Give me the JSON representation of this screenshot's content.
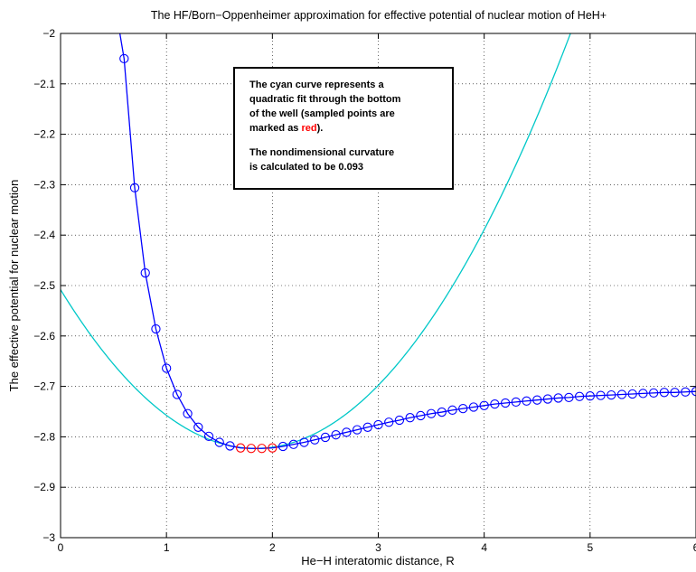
{
  "chart_data": {
    "type": "line",
    "title": "The HF/Born−Oppenheimer approximation for effective potential of nuclear motion of HeH+",
    "xlabel": "He−H interatomic distance, R",
    "ylabel": "The effective potential for nuclear motion",
    "xlim": [
      0,
      6
    ],
    "ylim": [
      -3,
      -2
    ],
    "x_ticks": [
      0,
      1,
      2,
      3,
      4,
      5,
      6
    ],
    "x_tick_labels": [
      "0",
      "1",
      "2",
      "3",
      "4",
      "5",
      "6"
    ],
    "y_ticks": [
      -3,
      -2.9,
      -2.8,
      -2.7,
      -2.6,
      -2.5,
      -2.4,
      -2.3,
      -2.2,
      -2.1,
      -2
    ],
    "y_tick_labels": [
      "−3",
      "−2.9",
      "−2.8",
      "−2.7",
      "−2.6",
      "−2.5",
      "−2.4",
      "−2.3",
      "−2.2",
      "−2.1",
      "−2"
    ],
    "grid": "dotted",
    "colors": {
      "potential": "#0000ff",
      "fit": "#00c8c8",
      "sampled": "#ff0000"
    },
    "annotation": {
      "para1_lines": [
        "The cyan curve represents a",
        "quadratic fit through the bottom",
        "of the well (sampled points are"
      ],
      "para1_last_prefix": "marked as ",
      "para1_last_red": "red",
      "para1_last_suffix": ").",
      "para2_lines": [
        "The nondimensional curvature",
        "is calculated to be 0.093"
      ]
    },
    "series": [
      {
        "style": "line-with-circles",
        "x": [
          0.6,
          0.7,
          0.8,
          0.9,
          1.0,
          1.1,
          1.2,
          1.3,
          1.4,
          1.5,
          1.6,
          1.7,
          1.8,
          1.9,
          2.0,
          2.1,
          2.2,
          2.3,
          2.4,
          2.5,
          2.6,
          2.7,
          2.8,
          2.9,
          3.0,
          3.1,
          3.2,
          3.3,
          3.4,
          3.5,
          3.6,
          3.7,
          3.8,
          3.9,
          4.0,
          4.1,
          4.2,
          4.3,
          4.4,
          4.5,
          4.6,
          4.7,
          4.8,
          4.9,
          5.0,
          5.1,
          5.2,
          5.3,
          5.4,
          5.5,
          5.6,
          5.7,
          5.8,
          5.9,
          6.0
        ],
        "y": [
          -2.05,
          -2.306,
          -2.475,
          -2.586,
          -2.664,
          -2.716,
          -2.754,
          -2.781,
          -2.799,
          -2.811,
          -2.818,
          -2.822,
          -2.823,
          -2.823,
          -2.822,
          -2.819,
          -2.815,
          -2.811,
          -2.806,
          -2.801,
          -2.796,
          -2.791,
          -2.786,
          -2.781,
          -2.776,
          -2.771,
          -2.767,
          -2.762,
          -2.758,
          -2.754,
          -2.751,
          -2.747,
          -2.744,
          -2.741,
          -2.738,
          -2.735,
          -2.733,
          -2.731,
          -2.729,
          -2.727,
          -2.725,
          -2.723,
          -2.722,
          -2.72,
          -2.719,
          -2.718,
          -2.717,
          -2.716,
          -2.715,
          -2.714,
          -2.713,
          -2.712,
          -2.712,
          -2.711,
          -2.71
        ],
        "steep_start": {
          "x": 0.56,
          "y": -2.0
        },
        "sampled_range": [
          1.7,
          2.0
        ]
      },
      {
        "style": "quadratic-fit",
        "vertex_x": 1.84,
        "vertex_y": -2.823,
        "curvature": 0.093,
        "x_range": [
          0,
          4.85
        ]
      }
    ]
  }
}
